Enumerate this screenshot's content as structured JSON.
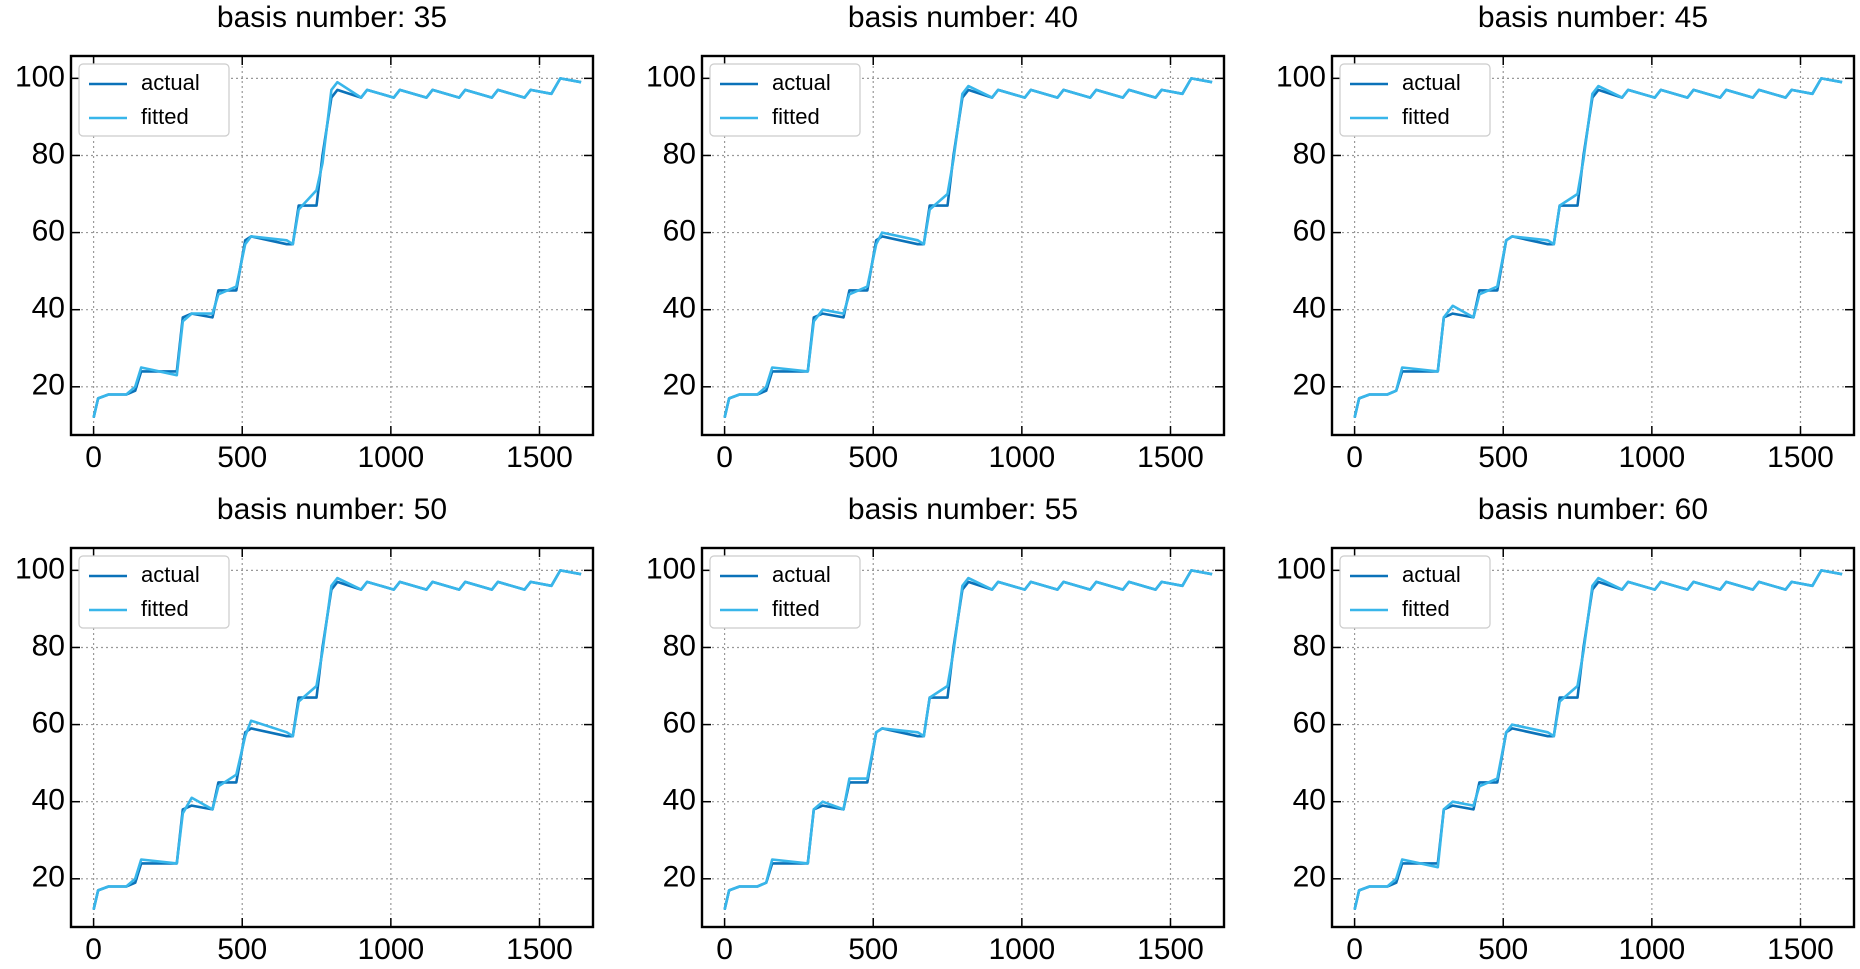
{
  "chart_data": [
    {
      "type": "line",
      "title": "basis number: 35",
      "x": [
        0,
        15,
        50,
        110,
        140,
        160,
        280,
        300,
        330,
        400,
        420,
        480,
        510,
        530,
        650,
        670,
        690,
        750,
        770,
        800,
        820,
        900,
        920,
        1010,
        1030,
        1120,
        1140,
        1230,
        1250,
        1340,
        1360,
        1450,
        1470,
        1540,
        1570,
        1640
      ],
      "series": [
        {
          "name": "actual",
          "color": "#0b72b9",
          "values": [
            12,
            17,
            18,
            18,
            19,
            24,
            24,
            38,
            39,
            38,
            45,
            45,
            58,
            59,
            57,
            57,
            67,
            67,
            80,
            95,
            97,
            95,
            97,
            95,
            97,
            95,
            97,
            95,
            97,
            95,
            97,
            95,
            97,
            96,
            100,
            99
          ]
        },
        {
          "name": "fitted",
          "color": "#38b6ea",
          "values": [
            12,
            17,
            18,
            18,
            20,
            25,
            23,
            37,
            39,
            39,
            44,
            46,
            57,
            59,
            58,
            57,
            66,
            71,
            78,
            97,
            99,
            95,
            97,
            95,
            97,
            95,
            97,
            95,
            97,
            95,
            97,
            95,
            97,
            96,
            100,
            99
          ]
        }
      ],
      "xlim": [
        -76,
        1680
      ],
      "ylim": [
        7.5,
        105.8
      ],
      "xticks": [
        0,
        500,
        1000,
        1500
      ],
      "yticks": [
        20,
        40,
        60,
        80,
        100
      ],
      "grid": true,
      "legend": "upper-left"
    },
    {
      "type": "line",
      "title": "basis number: 40",
      "x": [
        0,
        15,
        50,
        110,
        140,
        160,
        280,
        300,
        330,
        400,
        420,
        480,
        510,
        530,
        650,
        670,
        690,
        750,
        770,
        800,
        820,
        900,
        920,
        1010,
        1030,
        1120,
        1140,
        1230,
        1250,
        1340,
        1360,
        1450,
        1470,
        1540,
        1570,
        1640
      ],
      "series": [
        {
          "name": "actual",
          "color": "#0b72b9",
          "values": [
            12,
            17,
            18,
            18,
            19,
            24,
            24,
            38,
            39,
            38,
            45,
            45,
            58,
            59,
            57,
            57,
            67,
            67,
            80,
            95,
            97,
            95,
            97,
            95,
            97,
            95,
            97,
            95,
            97,
            95,
            97,
            95,
            97,
            96,
            100,
            99
          ]
        },
        {
          "name": "fitted",
          "color": "#38b6ea",
          "values": [
            12,
            17,
            18,
            18,
            20,
            25,
            24,
            37,
            40,
            39,
            44,
            46,
            57,
            60,
            58,
            57,
            66,
            70,
            79,
            96,
            98,
            95,
            97,
            95,
            97,
            95,
            97,
            95,
            97,
            95,
            97,
            95,
            97,
            96,
            100,
            99
          ]
        }
      ],
      "xlim": [
        -76,
        1680
      ],
      "ylim": [
        7.5,
        105.8
      ],
      "xticks": [
        0,
        500,
        1000,
        1500
      ],
      "yticks": [
        20,
        40,
        60,
        80,
        100
      ],
      "grid": true,
      "legend": "upper-left"
    },
    {
      "type": "line",
      "title": "basis number: 45",
      "x": [
        0,
        15,
        50,
        110,
        140,
        160,
        280,
        300,
        330,
        400,
        420,
        480,
        510,
        530,
        650,
        670,
        690,
        750,
        770,
        800,
        820,
        900,
        920,
        1010,
        1030,
        1120,
        1140,
        1230,
        1250,
        1340,
        1360,
        1450,
        1470,
        1540,
        1570,
        1640
      ],
      "series": [
        {
          "name": "actual",
          "color": "#0b72b9",
          "values": [
            12,
            17,
            18,
            18,
            19,
            24,
            24,
            38,
            39,
            38,
            45,
            45,
            58,
            59,
            57,
            57,
            67,
            67,
            80,
            95,
            97,
            95,
            97,
            95,
            97,
            95,
            97,
            95,
            97,
            95,
            97,
            95,
            97,
            96,
            100,
            99
          ]
        },
        {
          "name": "fitted",
          "color": "#38b6ea",
          "values": [
            12,
            17,
            18,
            18,
            19,
            25,
            24,
            38,
            41,
            38,
            44,
            46,
            58,
            59,
            58,
            57,
            67,
            70,
            79,
            96,
            98,
            95,
            97,
            95,
            97,
            95,
            97,
            95,
            97,
            95,
            97,
            95,
            97,
            96,
            100,
            99
          ]
        }
      ],
      "xlim": [
        -76,
        1680
      ],
      "ylim": [
        7.5,
        105.8
      ],
      "xticks": [
        0,
        500,
        1000,
        1500
      ],
      "yticks": [
        20,
        40,
        60,
        80,
        100
      ],
      "grid": true,
      "legend": "upper-left"
    },
    {
      "type": "line",
      "title": "basis number: 50",
      "x": [
        0,
        15,
        50,
        110,
        140,
        160,
        280,
        300,
        330,
        400,
        420,
        480,
        510,
        530,
        650,
        670,
        690,
        750,
        770,
        800,
        820,
        900,
        920,
        1010,
        1030,
        1120,
        1140,
        1230,
        1250,
        1340,
        1360,
        1450,
        1470,
        1540,
        1570,
        1640
      ],
      "series": [
        {
          "name": "actual",
          "color": "#0b72b9",
          "values": [
            12,
            17,
            18,
            18,
            19,
            24,
            24,
            38,
            39,
            38,
            45,
            45,
            58,
            59,
            57,
            57,
            67,
            67,
            80,
            95,
            97,
            95,
            97,
            95,
            97,
            95,
            97,
            95,
            97,
            95,
            97,
            95,
            97,
            96,
            100,
            99
          ]
        },
        {
          "name": "fitted",
          "color": "#38b6ea",
          "values": [
            12,
            17,
            18,
            18,
            20,
            25,
            24,
            37,
            41,
            38,
            44,
            47,
            57,
            61,
            58,
            57,
            66,
            70,
            79,
            96,
            98,
            95,
            97,
            95,
            97,
            95,
            97,
            95,
            97,
            95,
            97,
            95,
            97,
            96,
            100,
            99
          ]
        }
      ],
      "xlim": [
        -76,
        1680
      ],
      "ylim": [
        7.5,
        105.8
      ],
      "xticks": [
        0,
        500,
        1000,
        1500
      ],
      "yticks": [
        20,
        40,
        60,
        80,
        100
      ],
      "grid": true,
      "legend": "upper-left"
    },
    {
      "type": "line",
      "title": "basis number: 55",
      "x": [
        0,
        15,
        50,
        110,
        140,
        160,
        280,
        300,
        330,
        400,
        420,
        480,
        510,
        530,
        650,
        670,
        690,
        750,
        770,
        800,
        820,
        900,
        920,
        1010,
        1030,
        1120,
        1140,
        1230,
        1250,
        1340,
        1360,
        1450,
        1470,
        1540,
        1570,
        1640
      ],
      "series": [
        {
          "name": "actual",
          "color": "#0b72b9",
          "values": [
            12,
            17,
            18,
            18,
            19,
            24,
            24,
            38,
            39,
            38,
            45,
            45,
            58,
            59,
            57,
            57,
            67,
            67,
            80,
            95,
            97,
            95,
            97,
            95,
            97,
            95,
            97,
            95,
            97,
            95,
            97,
            95,
            97,
            96,
            100,
            99
          ]
        },
        {
          "name": "fitted",
          "color": "#38b6ea",
          "values": [
            12,
            17,
            18,
            18,
            19,
            25,
            24,
            38,
            40,
            38,
            46,
            46,
            58,
            59,
            58,
            57,
            67,
            70,
            79,
            96,
            98,
            95,
            97,
            95,
            97,
            95,
            97,
            95,
            97,
            95,
            97,
            95,
            97,
            96,
            100,
            99
          ]
        }
      ],
      "xlim": [
        -76,
        1680
      ],
      "ylim": [
        7.5,
        105.8
      ],
      "xticks": [
        0,
        500,
        1000,
        1500
      ],
      "yticks": [
        20,
        40,
        60,
        80,
        100
      ],
      "grid": true,
      "legend": "upper-left"
    },
    {
      "type": "line",
      "title": "basis number: 60",
      "x": [
        0,
        15,
        50,
        110,
        140,
        160,
        280,
        300,
        330,
        400,
        420,
        480,
        510,
        530,
        650,
        670,
        690,
        750,
        770,
        800,
        820,
        900,
        920,
        1010,
        1030,
        1120,
        1140,
        1230,
        1250,
        1340,
        1360,
        1450,
        1470,
        1540,
        1570,
        1640
      ],
      "series": [
        {
          "name": "actual",
          "color": "#0b72b9",
          "values": [
            12,
            17,
            18,
            18,
            19,
            24,
            24,
            38,
            39,
            38,
            45,
            45,
            58,
            59,
            57,
            57,
            67,
            67,
            80,
            95,
            97,
            95,
            97,
            95,
            97,
            95,
            97,
            95,
            97,
            95,
            97,
            95,
            97,
            96,
            100,
            99
          ]
        },
        {
          "name": "fitted",
          "color": "#38b6ea",
          "values": [
            12,
            17,
            18,
            18,
            20,
            25,
            23,
            38,
            40,
            39,
            44,
            46,
            58,
            60,
            58,
            57,
            66,
            70,
            79,
            96,
            98,
            95,
            97,
            95,
            97,
            95,
            97,
            95,
            97,
            95,
            97,
            95,
            97,
            96,
            100,
            99
          ]
        }
      ],
      "xlim": [
        -76,
        1680
      ],
      "ylim": [
        7.5,
        105.8
      ],
      "xticks": [
        0,
        500,
        1000,
        1500
      ],
      "yticks": [
        20,
        40,
        60,
        80,
        100
      ],
      "grid": true,
      "legend": "upper-left"
    }
  ]
}
